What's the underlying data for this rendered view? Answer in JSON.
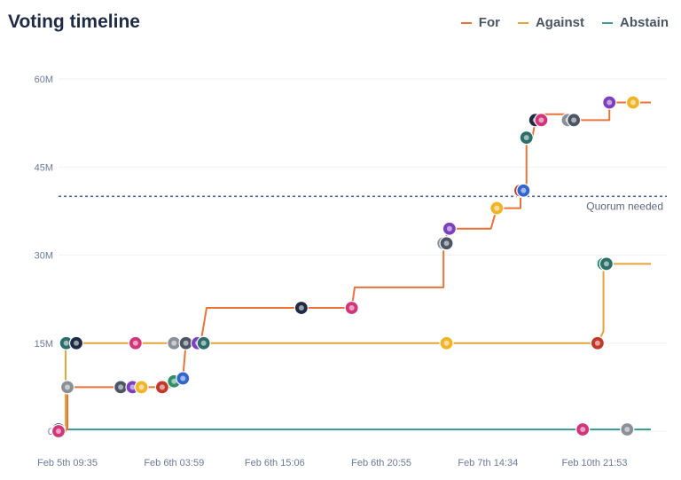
{
  "title": "Voting timeline",
  "legend": {
    "for_label": "For",
    "against_label": "Against",
    "abstain_label": "Abstain"
  },
  "colors": {
    "for": "#e8743b",
    "against": "#e3a43a",
    "abstain": "#3a9d96",
    "quorum": "#4d6aa8",
    "grid": "#eef0f4"
  },
  "chart_data": {
    "type": "line",
    "title": "Voting timeline",
    "xlabel": "",
    "ylabel": "",
    "x_tick_labels": [
      "Feb 5th 09:35",
      "Feb 6th 03:59",
      "Feb 6th 15:06",
      "Feb 6th 20:55",
      "Feb 7th 14:34",
      "Feb 10th 21:53"
    ],
    "x_range": [
      0,
      100
    ],
    "x_tick_positions": [
      1.5,
      19.5,
      36.5,
      54.5,
      72.5,
      90.5
    ],
    "y_tick_labels": [
      "0",
      "15M",
      "30M",
      "45M",
      "60M"
    ],
    "y_tick_values": [
      0,
      15,
      30,
      45,
      60
    ],
    "ylim": [
      0,
      60
    ],
    "y_unit": "M",
    "quorum": {
      "label": "Quorum needed",
      "value": 40
    },
    "series": [
      {
        "name": "For",
        "step_points": [
          [
            0,
            0
          ],
          [
            1.5,
            0.3
          ],
          [
            1.5,
            7.5
          ],
          [
            10.5,
            7.5
          ],
          [
            19,
            7.5
          ],
          [
            19.5,
            8.5
          ],
          [
            21,
            9.0
          ],
          [
            21.5,
            15
          ],
          [
            24,
            15
          ],
          [
            25,
            21
          ],
          [
            40,
            21
          ],
          [
            49.5,
            21
          ],
          [
            50,
            24.5
          ],
          [
            65,
            24.5
          ],
          [
            65,
            32
          ],
          [
            66,
            34.5
          ],
          [
            73,
            34.5
          ],
          [
            74,
            38
          ],
          [
            78,
            38
          ],
          [
            78,
            41
          ],
          [
            79,
            41
          ],
          [
            79,
            50
          ],
          [
            80,
            50
          ],
          [
            80.5,
            53
          ],
          [
            81.5,
            53
          ],
          [
            82,
            54
          ],
          [
            86,
            54
          ],
          [
            86,
            53
          ],
          [
            93,
            53
          ],
          [
            93,
            56
          ],
          [
            100,
            56
          ]
        ],
        "marker_x": [
          0,
          1.5,
          10.5,
          12.5,
          14,
          17.5,
          19.5,
          21,
          24.5,
          41,
          49.5,
          65,
          65.5,
          66,
          74,
          78,
          78.5,
          78.5,
          79,
          80.5,
          81.5,
          86,
          87,
          93,
          97
        ]
      },
      {
        "name": "Against",
        "step_points": [
          [
            0,
            0
          ],
          [
            1.2,
            0
          ],
          [
            1.2,
            15
          ],
          [
            30,
            15
          ],
          [
            66,
            15
          ],
          [
            91,
            15
          ],
          [
            92,
            17
          ],
          [
            92,
            28.5
          ],
          [
            100,
            28.5
          ]
        ],
        "marker_x": [
          1.3,
          3,
          13,
          19.5,
          21.5,
          23.5,
          65.5,
          91,
          92,
          92.5,
          92.5
        ]
      },
      {
        "name": "Abstain",
        "step_points": [
          [
            0,
            0.3
          ],
          [
            40,
            0.3
          ],
          [
            100,
            0.3
          ]
        ],
        "marker_x": [
          0,
          0,
          88.5,
          96
        ]
      }
    ]
  }
}
